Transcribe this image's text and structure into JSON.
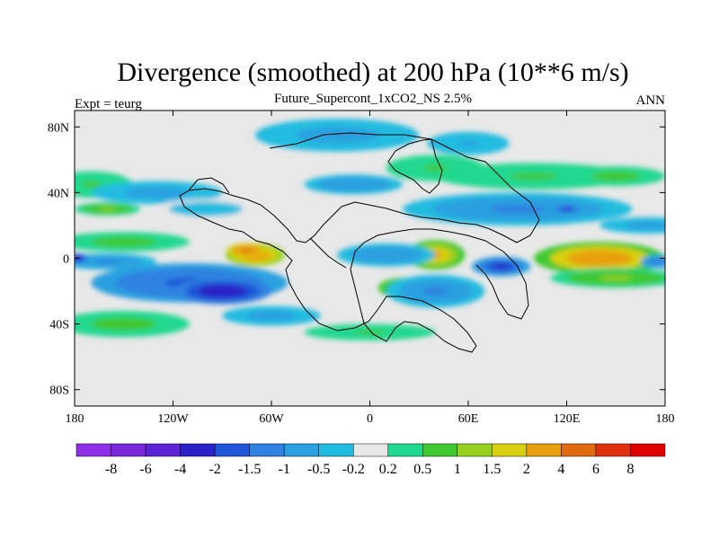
{
  "chart_data": {
    "type": "heatmap",
    "title": "Divergence (smoothed) at 200 hPa (10**6 m/s)",
    "subtitle": "Future_Supercont_1xCO2_NS 2.5%",
    "left_label": "Expt = teurg",
    "right_label": "ANN",
    "xlim": [
      -180,
      180
    ],
    "ylim": [
      -90,
      90
    ],
    "x_ticks": [
      "180",
      "120W",
      "60W",
      "0",
      "60E",
      "120E",
      "180"
    ],
    "x_tick_values": [
      -180,
      -120,
      -60,
      0,
      60,
      120,
      180
    ],
    "y_ticks": [
      "80N",
      "40N",
      "0",
      "40S",
      "80S"
    ],
    "y_tick_values": [
      80,
      40,
      0,
      -40,
      -80
    ],
    "colorbar": {
      "labels": [
        "-8",
        "-6",
        "-4",
        "-2",
        "-1.5",
        "-1",
        "-0.5",
        "-0.2",
        "0.2",
        "0.5",
        "1",
        "1.5",
        "2",
        "4",
        "6",
        "8"
      ],
      "colors": [
        "#8e2ee6",
        "#7a28dc",
        "#5a22d2",
        "#2a20c8",
        "#1f55d8",
        "#2f82e0",
        "#2aa0e0",
        "#20bce0",
        "#e8e8e8",
        "#20d890",
        "#40c830",
        "#98d020",
        "#d8d010",
        "#e8a010",
        "#e06a10",
        "#e03010",
        "#e00000"
      ]
    },
    "field_blobs": [
      {
        "lon": -170,
        "lat": 45,
        "rx": 25,
        "ry": 8,
        "v": 0.6
      },
      {
        "lon": -130,
        "lat": 40,
        "rx": 40,
        "ry": 7,
        "v": -0.8
      },
      {
        "lon": -100,
        "lat": 30,
        "rx": 30,
        "ry": 6,
        "v": -0.5
      },
      {
        "lon": -150,
        "lat": 10,
        "rx": 40,
        "ry": 6,
        "v": 0.7
      },
      {
        "lon": -70,
        "lat": 2,
        "rx": 18,
        "ry": 7,
        "v": 3.0
      },
      {
        "lon": -75,
        "lat": 5,
        "rx": 12,
        "ry": 4,
        "v": 5.0
      },
      {
        "lon": -160,
        "lat": -2,
        "rx": 30,
        "ry": 5,
        "v": -1.2
      },
      {
        "lon": -178,
        "lat": 0,
        "rx": 6,
        "ry": 3,
        "v": -3.0
      },
      {
        "lon": -110,
        "lat": -15,
        "rx": 60,
        "ry": 12,
        "v": -1.8
      },
      {
        "lon": -90,
        "lat": -20,
        "rx": 30,
        "ry": 8,
        "v": -3.0
      },
      {
        "lon": -150,
        "lat": -40,
        "rx": 40,
        "ry": 8,
        "v": 0.7
      },
      {
        "lon": -60,
        "lat": -35,
        "rx": 30,
        "ry": 6,
        "v": -0.8
      },
      {
        "lon": 0,
        "lat": -45,
        "rx": 40,
        "ry": 5,
        "v": 0.6
      },
      {
        "lon": 40,
        "lat": 2,
        "rx": 18,
        "ry": 9,
        "v": 2.5
      },
      {
        "lon": 10,
        "lat": 2,
        "rx": 30,
        "ry": 7,
        "v": -1.0
      },
      {
        "lon": 20,
        "lat": -18,
        "rx": 15,
        "ry": 6,
        "v": 1.6
      },
      {
        "lon": 40,
        "lat": -20,
        "rx": 30,
        "ry": 10,
        "v": -1.2
      },
      {
        "lon": 80,
        "lat": -5,
        "rx": 18,
        "ry": 6,
        "v": -2.5
      },
      {
        "lon": 140,
        "lat": 0,
        "rx": 40,
        "ry": 10,
        "v": 2.8
      },
      {
        "lon": 150,
        "lat": -12,
        "rx": 40,
        "ry": 6,
        "v": 1.0
      },
      {
        "lon": 90,
        "lat": 30,
        "rx": 70,
        "ry": 10,
        "v": -1.2
      },
      {
        "lon": 120,
        "lat": 30,
        "rx": 10,
        "ry": 3,
        "v": -2.5
      },
      {
        "lon": 100,
        "lat": 50,
        "rx": 60,
        "ry": 8,
        "v": 0.6
      },
      {
        "lon": 150,
        "lat": 50,
        "rx": 30,
        "ry": 6,
        "v": 0.8
      },
      {
        "lon": 40,
        "lat": 55,
        "rx": 30,
        "ry": 8,
        "v": 0.6
      },
      {
        "lon": -20,
        "lat": 75,
        "rx": 50,
        "ry": 10,
        "v": -0.7
      },
      {
        "lon": 60,
        "lat": 70,
        "rx": 25,
        "ry": 7,
        "v": -0.6
      },
      {
        "lon": -160,
        "lat": 30,
        "rx": 20,
        "ry": 4,
        "v": 1.2
      },
      {
        "lon": -10,
        "lat": 45,
        "rx": 30,
        "ry": 6,
        "v": -1.0
      },
      {
        "lon": 170,
        "lat": 20,
        "rx": 30,
        "ry": 5,
        "v": -0.8
      },
      {
        "lon": 175,
        "lat": -2,
        "rx": 10,
        "ry": 4,
        "v": -1.5
      }
    ]
  }
}
